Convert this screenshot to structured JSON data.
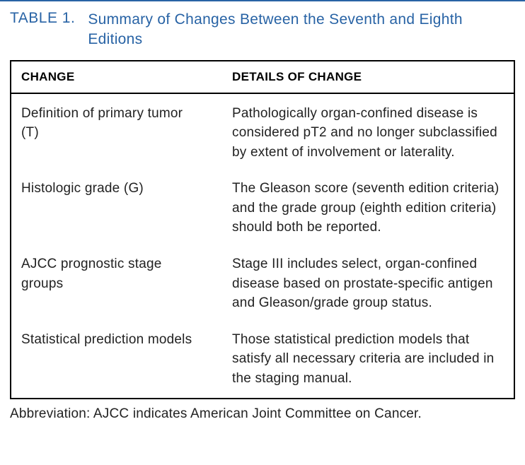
{
  "colors": {
    "accent": "#2863a5",
    "rule": "#2863a5",
    "text": "#222222",
    "black": "#000000"
  },
  "caption": {
    "label": "TABLE 1.",
    "title": "Summary of Changes Between the Seventh and Eighth Editions"
  },
  "table": {
    "headers": {
      "change": "CHANGE",
      "details": "DETAILS OF CHANGE"
    },
    "rows": [
      {
        "change": "Definition of primary tumor (T)",
        "details": "Pathologically organ-confined disease is considered pT2 and no longer subclassified by extent of involvement or laterality."
      },
      {
        "change": "Histologic grade (G)",
        "details": "The Gleason score (seventh edition criteria) and the grade group (eighth edition criteria) should both be reported."
      },
      {
        "change": "AJCC prognostic stage groups",
        "details": "Stage III includes select, organ-confined disease based on prostate-specific antigen and Gleason/grade group status."
      },
      {
        "change": "Statistical prediction models",
        "details": "Those statistical prediction models that satisfy all necessary criteria are included in the staging manual."
      }
    ]
  },
  "abbreviation": "Abbreviation: AJCC indicates American Joint Committee on Cancer."
}
